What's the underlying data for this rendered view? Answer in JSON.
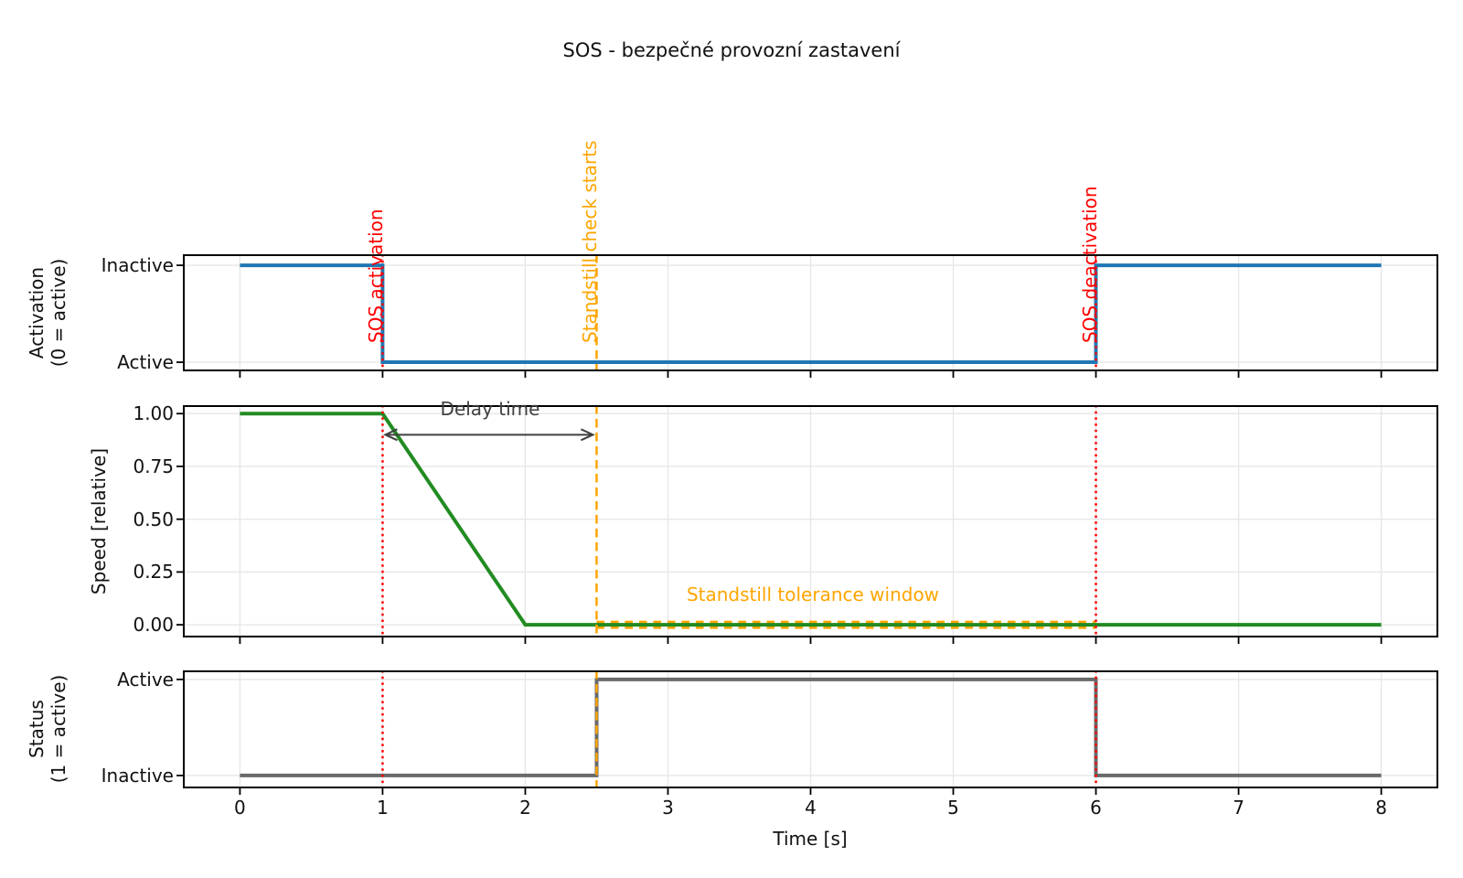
{
  "title": "SOS - bezpečné provozní zastavení",
  "chart_data": {
    "type": "line",
    "title": "SOS - bezpečné provozní zastavení",
    "xlabel": "Time [s]",
    "xlim": [
      -0.4,
      8.4
    ],
    "xticks": [
      0,
      1,
      2,
      3,
      4,
      5,
      6,
      7,
      8
    ],
    "grid": true,
    "grid_color": "#e7e7e7",
    "subplots": [
      {
        "id": "activation",
        "ylabel_lines": [
          "Activation",
          "(0 = active)"
        ],
        "ylim": [
          -0.094,
          1.114
        ],
        "yticks": [
          {
            "value": 1,
            "label": "Inactive"
          },
          {
            "value": 0,
            "label": "Active"
          }
        ],
        "series": [
          {
            "name": "activation-signal",
            "color": "#1f77b4",
            "linewidth": 4,
            "x": [
              0,
              1,
              1,
              6,
              6,
              8
            ],
            "y": [
              1,
              1,
              0,
              0,
              1,
              1
            ]
          }
        ]
      },
      {
        "id": "speed",
        "ylabel_lines": [
          "Speed [relative]"
        ],
        "ylim": [
          -0.06,
          1.04
        ],
        "yticks": [
          {
            "value": 1.0,
            "label": "1.00"
          },
          {
            "value": 0.75,
            "label": "0.75"
          },
          {
            "value": 0.5,
            "label": "0.50"
          },
          {
            "value": 0.25,
            "label": "0.25"
          },
          {
            "value": 0.0,
            "label": "0.00"
          }
        ],
        "series": [
          {
            "name": "speed-curve",
            "color": "#228B22",
            "linewidth": 4,
            "x": [
              0,
              1,
              2,
              8
            ],
            "y": [
              1,
              1,
              0,
              0
            ]
          }
        ],
        "tolerance_window": {
          "label": "Standstill tolerance window",
          "x_start": 2.5,
          "x_end": 6,
          "y": 0,
          "color": "#FFA500"
        },
        "delay_annotation": {
          "label": "Delay time",
          "x_start": 1,
          "x_end": 2.5,
          "y": 0.9,
          "color": "#3f3f3f"
        }
      },
      {
        "id": "status",
        "ylabel_lines": [
          "Status",
          "(1 = active)"
        ],
        "ylim": [
          -0.134,
          1.094
        ],
        "yticks": [
          {
            "value": 1,
            "label": "Active"
          },
          {
            "value": 0,
            "label": "Inactive"
          }
        ],
        "series": [
          {
            "name": "status-signal",
            "color": "#696969",
            "linewidth": 4,
            "x": [
              0,
              2.5,
              2.5,
              6,
              6,
              8
            ],
            "y": [
              0,
              0,
              1,
              1,
              0,
              0
            ]
          }
        ]
      }
    ],
    "vlines": [
      {
        "x": 1,
        "color": "#FF0000",
        "style": "dotted",
        "label": "SOS activation"
      },
      {
        "x": 2.5,
        "color": "#FFA500",
        "style": "dashed",
        "label": "Standstill check starts"
      },
      {
        "x": 6,
        "color": "#FF0000",
        "style": "dotted",
        "label": "SOS deactivation"
      }
    ]
  }
}
